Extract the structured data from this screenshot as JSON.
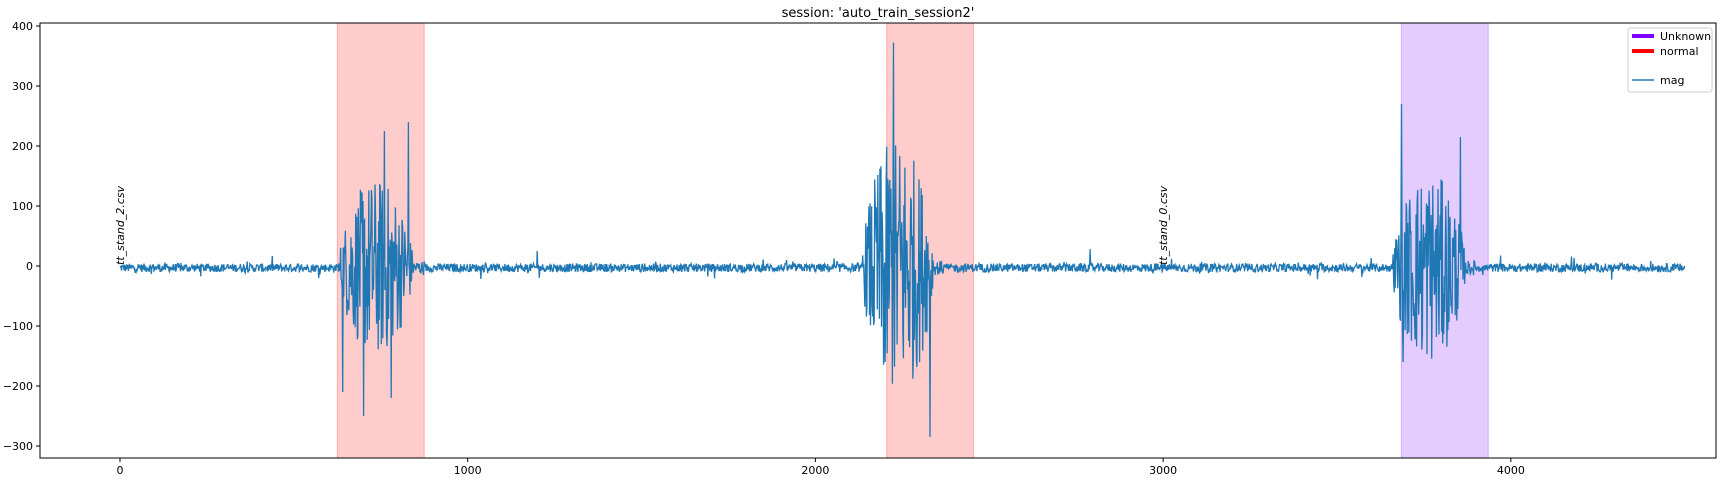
{
  "chart_data": {
    "type": "line",
    "title": "session: 'auto_train_session2'",
    "xlabel": "",
    "ylabel": "",
    "xlim": [
      -230,
      4590
    ],
    "ylim": [
      -320,
      405
    ],
    "xticks": [
      0,
      1000,
      2000,
      3000,
      4000
    ],
    "xtick_labels": [
      "0",
      "1000",
      "2000",
      "3000",
      "4000"
    ],
    "yticks": [
      -300,
      -200,
      -100,
      0,
      100,
      200,
      300,
      400
    ],
    "ytick_labels": [
      "−300",
      "−200",
      "−100",
      "0",
      "100",
      "200",
      "300",
      "400"
    ],
    "grid": false,
    "legend_position": "top-right",
    "legend": [
      {
        "label": "Unknown",
        "color": "#7f00ff",
        "kind": "thick-line"
      },
      {
        "label": "normal",
        "color": "#ff0000",
        "kind": "thick-line"
      },
      {
        "label": "",
        "color": "",
        "kind": "spacer"
      },
      {
        "label": "mag",
        "color": "#1f77b4",
        "kind": "line"
      }
    ],
    "regions": [
      {
        "label": "normal",
        "x_start": 625,
        "x_end": 875,
        "color": "#ff0000",
        "alpha": 0.2
      },
      {
        "label": "normal",
        "x_start": 2205,
        "x_end": 2455,
        "color": "#ff0000",
        "alpha": 0.2
      },
      {
        "label": "Unknown",
        "x_start": 3685,
        "x_end": 3935,
        "color": "#7f00ff",
        "alpha": 0.2
      }
    ],
    "annotations": [
      {
        "text": "tt_stand_2.csv",
        "x": 0,
        "y": 0
      },
      {
        "text": "tt_stand_0.csv",
        "x": 3000,
        "y": 0
      }
    ],
    "series": [
      {
        "name": "mag",
        "color": "#1f77b4",
        "x_start": 0,
        "x_end": 4500,
        "bursts": [
          {
            "x_start": 630,
            "x_end": 875,
            "peak": 240,
            "trough": -250
          },
          {
            "x_start": 2135,
            "x_end": 2370,
            "peak": 372,
            "trough": -285
          },
          {
            "x_start": 3660,
            "x_end": 3900,
            "peak": 270,
            "trough": -160
          }
        ],
        "keypoints": [
          {
            "x": 0,
            "y": 0
          },
          {
            "x": 640,
            "y": -210
          },
          {
            "x": 700,
            "y": -250
          },
          {
            "x": 760,
            "y": 225
          },
          {
            "x": 780,
            "y": -220
          },
          {
            "x": 830,
            "y": 240
          },
          {
            "x": 1200,
            "y": 25
          },
          {
            "x": 2200,
            "y": -160
          },
          {
            "x": 2225,
            "y": 372
          },
          {
            "x": 2330,
            "y": -285
          },
          {
            "x": 2790,
            "y": 28
          },
          {
            "x": 3685,
            "y": 270
          },
          {
            "x": 3690,
            "y": -160
          },
          {
            "x": 3855,
            "y": 215
          },
          {
            "x": 4500,
            "y": 0
          }
        ]
      }
    ]
  }
}
